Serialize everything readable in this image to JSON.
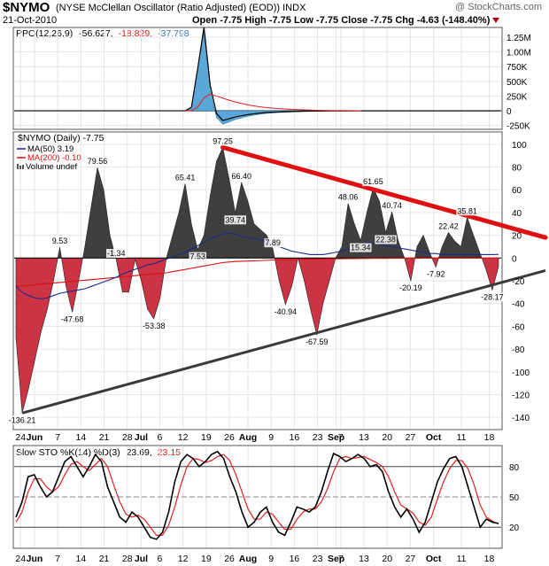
{
  "header": {
    "ticker": "$NYMO",
    "fullname": "(NYSE McClellan Oscillator (Ratio Adjusted) (EOD)) INDX",
    "date": "21-Oct-2010",
    "open_label": "Open",
    "open": "-7.75",
    "high_label": "High",
    "high": "-7.75",
    "low_label": "Low",
    "low": "-7.75",
    "close_label": "Close",
    "close": "-7.75",
    "chg_label": "Chg",
    "chg": "-4.63 (-148.40%)",
    "logo": "@ StockCharts.com"
  },
  "colors": {
    "positive_fill": "#3f3f3f",
    "negative_fill": "#cc3344",
    "ma50": "#1c2a8a",
    "ma200": "#d81010",
    "trend_upper": "#e01010",
    "trend_lower": "#3a3a3a",
    "ppo_hist": "#5aa8d8",
    "stoch_k": "#000000",
    "stoch_d": "#e02020"
  },
  "chart_data": [
    {
      "type": "line",
      "panel": "ppo",
      "legend": {
        "name": "PPO(12,26,9)",
        "v1": "-56.627,",
        "v2": "-18.829,",
        "v3": "-37.798"
      },
      "ylabels": [
        "1.25M",
        "1.00M",
        "750K",
        "500K",
        "250K",
        "0",
        "-250K"
      ],
      "ylim": [
        -300000,
        1400000
      ],
      "x_index": [
        27,
        28,
        29,
        30,
        31,
        32,
        33,
        34,
        35,
        36,
        37,
        38,
        39,
        40,
        42,
        44,
        46,
        48,
        50,
        55
      ],
      "hist": [
        0,
        60000,
        700000,
        1350000,
        350000,
        -120000,
        -230000,
        -190000,
        -150000,
        -120000,
        -95000,
        -75000,
        -58000,
        -45000,
        -30000,
        -20000,
        -12000,
        -7000,
        -3000,
        0
      ],
      "signal": [
        0,
        5000,
        60000,
        220000,
        280000,
        250000,
        215000,
        180000,
        150000,
        125000,
        100000,
        82000,
        66000,
        53000,
        36000,
        24000,
        15000,
        9000,
        5000,
        0
      ]
    },
    {
      "type": "area",
      "panel": "nymo",
      "legend": {
        "title": "$NYMO (Daily) -7.75",
        "ma50": "MA(50) 3.19",
        "ma200": "MA(200) -0.10",
        "volume": "Volume undef"
      },
      "xticks": [
        "24",
        "Jun",
        "7",
        "14",
        "21",
        "28",
        "Jul",
        "6",
        "12",
        "19",
        "26",
        "Aug",
        "9",
        "16",
        "23",
        "Sep",
        "7",
        "13",
        "20",
        "27",
        "Oct",
        "11",
        "18"
      ],
      "ylabels": [
        "100",
        "80",
        "60",
        "40",
        "20",
        "0",
        "-20",
        "-40",
        "-60",
        "-80",
        "-100",
        "-120",
        "-140"
      ],
      "ylim": [
        -150,
        110
      ],
      "values": [
        -70,
        -136.21,
        -115,
        -90,
        -65,
        -45,
        -20,
        9.53,
        -25,
        -47.68,
        -20,
        10,
        45,
        79.56,
        60,
        20,
        -1.34,
        -30,
        -30,
        -1.34,
        -20,
        -45,
        -53.38,
        -35,
        0,
        20,
        40,
        65.41,
        30,
        7.53,
        20,
        55,
        85,
        97.25,
        70,
        39.74,
        66.4,
        50,
        30,
        25,
        20,
        7.89,
        -20,
        -40.94,
        -25,
        0,
        -20,
        -45,
        -67.59,
        -40,
        -20,
        0,
        10,
        48.06,
        30,
        15.34,
        40,
        61.65,
        50,
        22.38,
        40.74,
        15,
        0,
        -20.19,
        10,
        20,
        5,
        -7.92,
        10,
        22.42,
        15,
        10,
        35.81,
        20,
        5,
        -10,
        -28.17,
        -7.75
      ],
      "ma50": [
        -25,
        -30,
        -33,
        -35,
        -36,
        -35,
        -33,
        -31,
        -30,
        -29,
        -28,
        -27,
        -25,
        -23,
        -21,
        -19,
        -17,
        -14,
        -12,
        -10,
        -8,
        -6,
        -5,
        -3,
        -1,
        1,
        3,
        5,
        8,
        11,
        14,
        17,
        19,
        21,
        22,
        21,
        19,
        18,
        17,
        16,
        14,
        12,
        10,
        8,
        6,
        5,
        4,
        3,
        3,
        3,
        4,
        5,
        6,
        8,
        10,
        12,
        13,
        13,
        12,
        11,
        10,
        9,
        8,
        7,
        6,
        5,
        4,
        4,
        3,
        3,
        3,
        3,
        3,
        3,
        3,
        3,
        3,
        3.19
      ],
      "ma200": [
        -25,
        -24.5,
        -24,
        -23.5,
        -23,
        -22.5,
        -22,
        -21.5,
        -21,
        -20.5,
        -20,
        -19.5,
        -19,
        -18.5,
        -18,
        -17.5,
        -17,
        -16.5,
        -16,
        -15.5,
        -15,
        -14.5,
        -14,
        -13.5,
        -13,
        -12,
        -11,
        -10,
        -9,
        -8,
        -7,
        -6,
        -5,
        -4,
        -3.5,
        -3,
        -2.8,
        -2.6,
        -2.4,
        -2.2,
        -2,
        -1.8,
        -1.6,
        -1.4,
        -1.3,
        -1.2,
        -1.1,
        -1,
        -1,
        -0.9,
        -0.8,
        -0.7,
        -0.6,
        -0.5,
        -0.5,
        -0.4,
        -0.4,
        -0.3,
        -0.3,
        -0.3,
        -0.2,
        -0.2,
        -0.2,
        -0.2,
        -0.2,
        -0.1,
        -0.1,
        -0.1,
        -0.1,
        -0.1,
        -0.1,
        -0.1,
        -0.1,
        -0.1,
        -0.1,
        -0.1,
        -0.1,
        -0.1
      ],
      "value_labels": [
        {
          "i": 1,
          "text": "-136.21",
          "side": "below"
        },
        {
          "i": 7,
          "text": "9.53",
          "side": "above"
        },
        {
          "i": 9,
          "text": "-47.68",
          "side": "below"
        },
        {
          "i": 13,
          "text": "79.56",
          "side": "above"
        },
        {
          "i": 16,
          "text": "-1.34",
          "side": "above"
        },
        {
          "i": 22,
          "text": "-53.38",
          "side": "below"
        },
        {
          "i": 27,
          "text": "65.41",
          "side": "above"
        },
        {
          "i": 29,
          "text": "7.53",
          "side": "below"
        },
        {
          "i": 33,
          "text": "97.25",
          "side": "above"
        },
        {
          "i": 35,
          "text": "39.74",
          "side": "below"
        },
        {
          "i": 36,
          "text": "66.40",
          "side": "above"
        },
        {
          "i": 41,
          "text": "7.89",
          "side": "above"
        },
        {
          "i": 43,
          "text": "-40.94",
          "side": "below"
        },
        {
          "i": 48,
          "text": "-67.59",
          "side": "below"
        },
        {
          "i": 53,
          "text": "48.06",
          "side": "above"
        },
        {
          "i": 55,
          "text": "15.34",
          "side": "below"
        },
        {
          "i": 57,
          "text": "61.65",
          "side": "above"
        },
        {
          "i": 59,
          "text": "22.38",
          "side": "below"
        },
        {
          "i": 60,
          "text": "40.74",
          "side": "above"
        },
        {
          "i": 63,
          "text": "-20.19",
          "side": "below"
        },
        {
          "i": 67,
          "text": "-7.92",
          "side": "below"
        },
        {
          "i": 69,
          "text": "22.42",
          "side": "above"
        },
        {
          "i": 72,
          "text": "35.81",
          "side": "above"
        },
        {
          "i": 76,
          "text": "-28.17",
          "side": "below"
        }
      ],
      "trendlines": [
        {
          "name": "upper",
          "from": {
            "i": 33,
            "y": 97.25
          },
          "to": {
            "i": 82,
            "y": 18
          }
        },
        {
          "name": "lower",
          "from": {
            "i": 1,
            "y": -136.21
          },
          "to": {
            "i": 82,
            "y": -11
          }
        }
      ]
    },
    {
      "type": "line",
      "panel": "stoch",
      "legend": {
        "name": "Slow STO %K(14) %D(3)",
        "k": "23.69,",
        "d": "23.15"
      },
      "ylabels": [
        "80",
        "50",
        "20"
      ],
      "ylim": [
        0,
        100
      ],
      "k": [
        30,
        45,
        70,
        72,
        60,
        50,
        55,
        70,
        85,
        90,
        80,
        70,
        80,
        92,
        85,
        60,
        45,
        30,
        25,
        35,
        30,
        20,
        10,
        8,
        15,
        35,
        65,
        85,
        92,
        88,
        80,
        85,
        92,
        95,
        88,
        70,
        55,
        35,
        20,
        25,
        35,
        40,
        25,
        15,
        12,
        25,
        40,
        38,
        35,
        40,
        55,
        75,
        93,
        90,
        85,
        88,
        92,
        88,
        80,
        82,
        75,
        55,
        40,
        30,
        38,
        28,
        15,
        25,
        45,
        65,
        78,
        88,
        90,
        80,
        60,
        40,
        20,
        28,
        25,
        23.69
      ],
      "d": [
        25,
        35,
        55,
        68,
        68,
        60,
        55,
        60,
        72,
        82,
        85,
        80,
        76,
        82,
        88,
        80,
        62,
        45,
        33,
        30,
        32,
        28,
        20,
        12,
        12,
        22,
        40,
        62,
        80,
        88,
        87,
        84,
        86,
        90,
        92,
        86,
        72,
        55,
        38,
        28,
        28,
        35,
        33,
        25,
        18,
        18,
        28,
        35,
        38,
        38,
        45,
        58,
        75,
        88,
        90,
        88,
        89,
        90,
        87,
        84,
        80,
        70,
        55,
        42,
        38,
        34,
        25,
        22,
        30,
        48,
        65,
        78,
        86,
        86,
        78,
        62,
        42,
        30,
        26,
        23.15
      ],
      "xticks": [
        "24",
        "Jun",
        "7",
        "14",
        "21",
        "28",
        "Jul",
        "6",
        "12",
        "19",
        "26",
        "Aug",
        "9",
        "16",
        "23",
        "Sep",
        "7",
        "13",
        "20",
        "27",
        "Oct",
        "11",
        "18"
      ]
    }
  ]
}
